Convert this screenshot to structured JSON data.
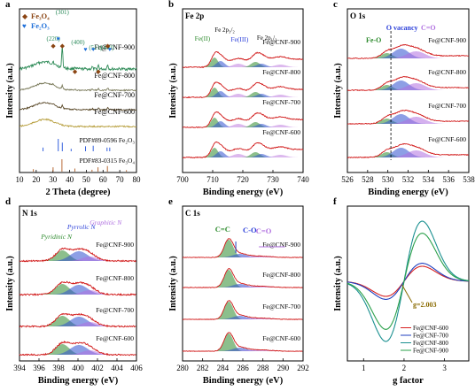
{
  "chart_data": [
    {
      "panel": "a",
      "type": "line",
      "xlabel": "2 Theta (degree)",
      "ylabel": "Intensity (a.u.)",
      "xlim": [
        10,
        80
      ],
      "xticks": [
        "10",
        "20",
        "30",
        "40",
        "50",
        "60",
        "70",
        "80"
      ],
      "legend": [
        {
          "symbol": "◆",
          "label": "Fe₃O₄",
          "color": "#8b4513"
        },
        {
          "symbol": "♥",
          "label": "Fe₂O₃",
          "color": "#1e6fd9"
        }
      ],
      "peak_labels": [
        "(301)",
        "(220)",
        "(400)",
        "(511)",
        "(440)"
      ],
      "series": [
        {
          "name": "Fe@CNF-900",
          "color": "#2e8b57",
          "offset": 4
        },
        {
          "name": "Fe@CNF-800",
          "color": "#7a7a5a",
          "offset": 3
        },
        {
          "name": "Fe@CNF-700",
          "color": "#5b4a2a",
          "offset": 2
        },
        {
          "name": "Fe@CNF-600",
          "color": "#b8a040",
          "offset": 1
        }
      ],
      "references": [
        {
          "name": "PDF#89-0596 Fe₂O₃",
          "color": "#1e4fd9",
          "peaks": [
            {
              "x": 24.1,
              "h": 0.3
            },
            {
              "x": 33.2,
              "h": 1.0
            },
            {
              "x": 35.6,
              "h": 0.7
            },
            {
              "x": 40.9,
              "h": 0.2
            },
            {
              "x": 49.5,
              "h": 0.4
            },
            {
              "x": 54.1,
              "h": 0.45
            },
            {
              "x": 62.4,
              "h": 0.3
            },
            {
              "x": 64.0,
              "h": 0.3
            }
          ]
        },
        {
          "name": "PDF#83-0315 Fe₃O₄",
          "color": "#b05a20",
          "peaks": [
            {
              "x": 18.3,
              "h": 0.2
            },
            {
              "x": 30.1,
              "h": 0.35
            },
            {
              "x": 35.4,
              "h": 1.0
            },
            {
              "x": 43.1,
              "h": 0.25
            },
            {
              "x": 53.4,
              "h": 0.15
            },
            {
              "x": 57.0,
              "h": 0.35
            },
            {
              "x": 62.6,
              "h": 0.45
            },
            {
              "x": 74.0,
              "h": 0.12
            }
          ]
        }
      ]
    },
    {
      "panel": "b",
      "type": "line",
      "title": "Fe 2p",
      "xlabel": "Binding energy (eV)",
      "ylabel": "Intensity (a.u.)",
      "xlim": [
        700,
        740
      ],
      "xticks": [
        "700",
        "710",
        "720",
        "730",
        "740"
      ],
      "annotations": [
        "Fe 2p₃/₂",
        "Fe 2p₁/₂",
        "Fe(II)",
        "Fe(III)"
      ],
      "series": [
        {
          "name": "Fe@CNF-900"
        },
        {
          "name": "Fe@CNF-800"
        },
        {
          "name": "Fe@CNF-700"
        },
        {
          "name": "Fe@CNF-600"
        }
      ]
    },
    {
      "panel": "c",
      "type": "line",
      "title": "O 1s",
      "xlabel": "Binding energy (eV)",
      "ylabel": "Intensity (a.u.)",
      "xlim": [
        526,
        538
      ],
      "xticks": [
        "526",
        "528",
        "530",
        "532",
        "534",
        "536",
        "538"
      ],
      "annotations": [
        "Fe-O",
        "O vacancy",
        "C=O"
      ],
      "components": [
        {
          "name": "Fe-O",
          "center": 529.9,
          "color": "#2e8b2e"
        },
        {
          "name": "O vacancy",
          "center": 531.3,
          "color": "#2b3fd9"
        },
        {
          "name": "C=O",
          "center": 532.8,
          "color": "#b070e0"
        }
      ],
      "series": [
        {
          "name": "Fe@CNF-900"
        },
        {
          "name": "Fe@CNF-800"
        },
        {
          "name": "Fe@CNF-700"
        },
        {
          "name": "Fe@CNF-600"
        }
      ]
    },
    {
      "panel": "d",
      "type": "line",
      "title": "N 1s",
      "xlabel": "Binding energy (eV)",
      "ylabel": "Intensity (a.u.)",
      "xlim": [
        394,
        406
      ],
      "xticks": [
        "394",
        "396",
        "398",
        "400",
        "402",
        "404",
        "406"
      ],
      "annotations": [
        "Pyridinic N",
        "Pyrrolic N",
        "Graphitic N"
      ],
      "components": [
        {
          "name": "Pyridinic N",
          "center": 398.4,
          "color": "#2e8b2e"
        },
        {
          "name": "Pyrrolic N",
          "center": 400.1,
          "color": "#2b3fd9"
        },
        {
          "name": "Graphitic N",
          "center": 401.2,
          "color": "#b070e0"
        }
      ],
      "series": [
        {
          "name": "Fe@CNF-900"
        },
        {
          "name": "Fe@CNF-800"
        },
        {
          "name": "Fe@CNF-700"
        },
        {
          "name": "Fe@CNF-600"
        }
      ]
    },
    {
      "panel": "e",
      "type": "line",
      "title": "C 1s",
      "xlabel": "Binding energy (eV)",
      "ylabel": "Intensity (a.u.)",
      "xlim": [
        280,
        292
      ],
      "xticks": [
        "280",
        "282",
        "284",
        "286",
        "288",
        "290",
        "292"
      ],
      "annotations": [
        "C=C",
        "C-O",
        "C=O"
      ],
      "components": [
        {
          "name": "C=C",
          "center": 284.6,
          "color": "#2e8b2e"
        },
        {
          "name": "C-O",
          "center": 285.7,
          "color": "#2b3fd9"
        },
        {
          "name": "C=O",
          "center": 287.6,
          "color": "#b070e0"
        }
      ],
      "series": [
        {
          "name": "Fe@CNF-900"
        },
        {
          "name": "Fe@CNF-800"
        },
        {
          "name": "Fe@CNF-700"
        },
        {
          "name": "Fe@CNF-600"
        }
      ]
    },
    {
      "panel": "f",
      "type": "line",
      "xlabel": "g factor",
      "ylabel": "Intensity (a.u.)",
      "xlim": [
        0.6,
        3.6
      ],
      "xticks": [
        "1",
        "2",
        "3"
      ],
      "annotations": [
        "g=2.003"
      ],
      "series": [
        {
          "name": "Fe@CNF-600",
          "color": "#d62020",
          "amp": 0.25
        },
        {
          "name": "Fe@CNF-700",
          "color": "#1f3fbf",
          "amp": 0.3
        },
        {
          "name": "Fe@CNF-800",
          "color": "#1a9090",
          "amp": 1.0
        },
        {
          "name": "Fe@CNF-900",
          "color": "#2aa04a",
          "amp": 0.8
        }
      ]
    }
  ]
}
